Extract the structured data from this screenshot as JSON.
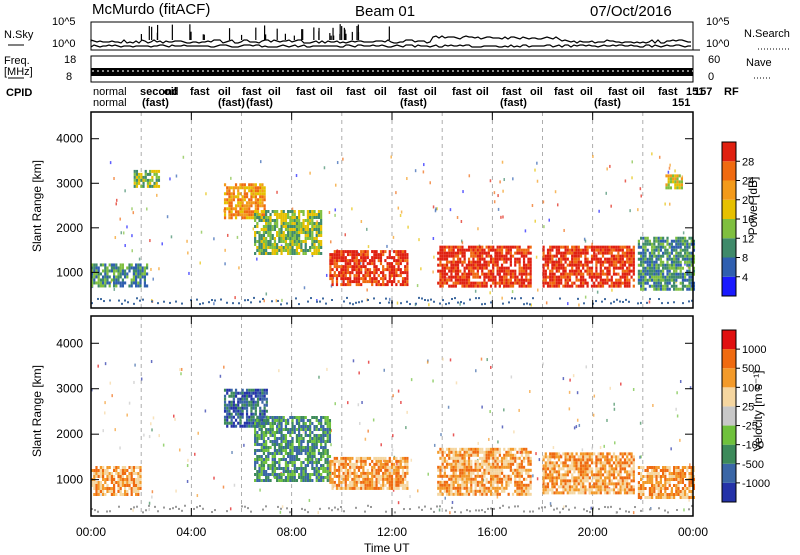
{
  "header": {
    "radar": "McMurdo (fitACF)",
    "beam": "Beam 01",
    "date": "07/Oct/2016"
  },
  "top_panels": {
    "nsky_label": "N.Sky",
    "nsky_ticks": [
      "10^5",
      "10^0"
    ],
    "nsearch_label": "N.Search",
    "nsearch_ticks": [
      "10^5",
      "10^0"
    ],
    "freq_label_1": "Freq.",
    "freq_label_2": "[MHz]",
    "freq_ticks": [
      "18",
      "8"
    ],
    "nave_label": "Nave",
    "nave_ticks": [
      "60",
      "0"
    ],
    "cpid_label": "CPID",
    "cpid_row1": "normal",
    "cpid_row2": "normal",
    "cpid_fragments": [
      "(fast)",
      "(fast)",
      "(fast)",
      "(fast)",
      "(fast)",
      "(fast)"
    ],
    "cpid_end_1": "151",
    "cpid_end_2": "157",
    "cpid_end_3": "RF"
  },
  "chart_data": [
    {
      "type": "heatmap",
      "name_label": "Power",
      "ylabel": "Slant Range [km]",
      "yticks": [
        1000,
        2000,
        3000,
        4000
      ],
      "ylim": [
        200,
        4600
      ],
      "xticks": [
        "00:00",
        "04:00",
        "08:00",
        "12:00",
        "16:00",
        "20:00",
        "00:00"
      ],
      "xlim_hours": [
        0,
        24
      ],
      "colorbar_label": "Power [dB]",
      "colorbar_ticks": [
        "4",
        "8",
        "12",
        "16",
        "20",
        "24",
        "28"
      ],
      "colorbar_colors": [
        "#1a1aff",
        "#2f5fb0",
        "#3f8a6a",
        "#7fbf3f",
        "#e6c000",
        "#f39a1a",
        "#f06a10",
        "#e02010"
      ],
      "regions": [
        {
          "t0": 0.0,
          "t1": 2.2,
          "r0": 700,
          "r1": 1200,
          "level": 2
        },
        {
          "t0": 1.7,
          "t1": 2.7,
          "r0": 2900,
          "r1": 3300,
          "level": 3
        },
        {
          "t0": 5.3,
          "t1": 6.9,
          "r0": 2200,
          "r1": 3000,
          "level": 5
        },
        {
          "t0": 6.5,
          "t1": 9.2,
          "r0": 1400,
          "r1": 2400,
          "level": 3
        },
        {
          "t0": 9.5,
          "t1": 12.6,
          "r0": 700,
          "r1": 1500,
          "level": 7
        },
        {
          "t0": 13.8,
          "t1": 17.5,
          "r0": 700,
          "r1": 1600,
          "level": 7
        },
        {
          "t0": 18.0,
          "t1": 21.6,
          "r0": 700,
          "r1": 1600,
          "level": 7
        },
        {
          "t0": 21.8,
          "t1": 24.0,
          "r0": 600,
          "r1": 1800,
          "level": 2
        },
        {
          "t0": 22.9,
          "t1": 23.6,
          "r0": 2900,
          "r1": 3200,
          "level": 4
        }
      ]
    },
    {
      "type": "heatmap",
      "name_label": "Velocity",
      "ylabel": "Slant Range [km]",
      "yticks": [
        1000,
        2000,
        3000,
        4000
      ],
      "ylim": [
        200,
        4600
      ],
      "xticks": [
        "00:00",
        "04:00",
        "08:00",
        "12:00",
        "16:00",
        "20:00",
        "00:00"
      ],
      "xlabel": "Time UT",
      "xlim_hours": [
        0,
        24
      ],
      "colorbar_label": "Velocity [m s⁻¹]",
      "colorbar_ticks": [
        "1000",
        "500",
        "100",
        "25",
        "-25",
        "-100",
        "-500",
        "-1000"
      ],
      "colorbar_colors": [
        "#2432a8",
        "#3a66a6",
        "#3c8a5a",
        "#6fc13c",
        "#c8c8c8",
        "#f5d6a0",
        "#f39a2a",
        "#ef6a10",
        "#e01010"
      ],
      "regions": [
        {
          "t0": 0.0,
          "t1": 2.0,
          "r0": 700,
          "r1": 1300,
          "level": 6
        },
        {
          "t0": 5.3,
          "t1": 7.0,
          "r0": 2200,
          "r1": 3000,
          "level": 1
        },
        {
          "t0": 6.5,
          "t1": 9.5,
          "r0": 1000,
          "r1": 2400,
          "level": 2
        },
        {
          "t0": 9.5,
          "t1": 12.6,
          "r0": 800,
          "r1": 1500,
          "level": 6
        },
        {
          "t0": 13.8,
          "t1": 17.5,
          "r0": 700,
          "r1": 1700,
          "level": 6
        },
        {
          "t0": 18.0,
          "t1": 21.6,
          "r0": 700,
          "r1": 1600,
          "level": 6
        },
        {
          "t0": 21.8,
          "t1": 24.0,
          "r0": 600,
          "r1": 1300,
          "level": 6
        }
      ]
    }
  ]
}
